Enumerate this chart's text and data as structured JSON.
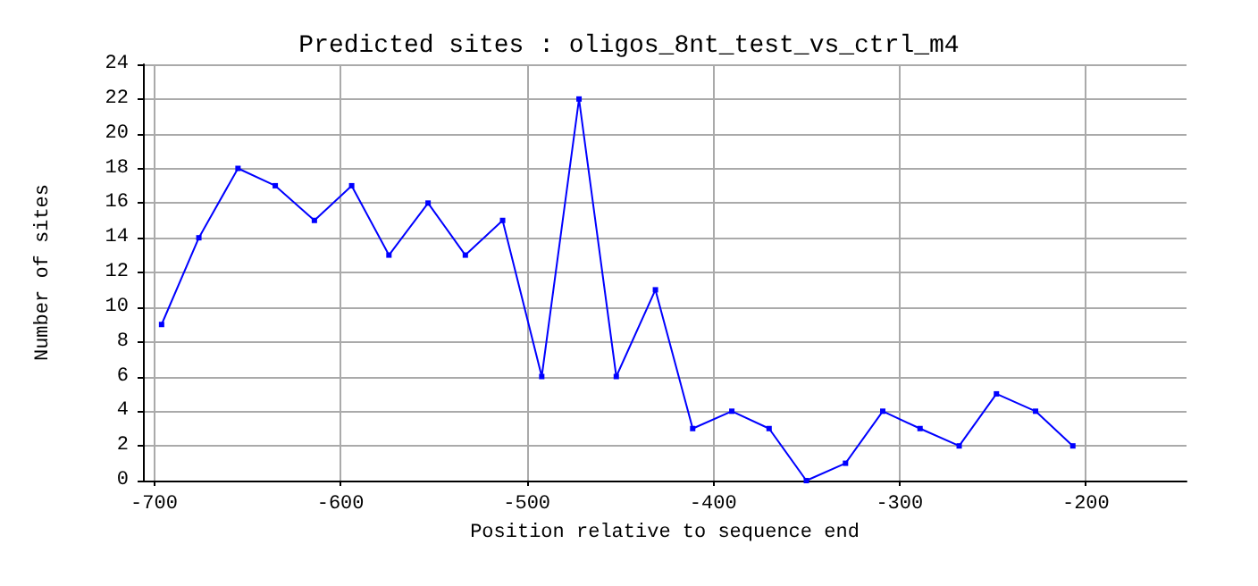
{
  "chart_data": {
    "type": "line",
    "title": "Predicted sites : oligos_8nt_test_vs_ctrl_m4",
    "xlabel": "Position relative to sequence end",
    "ylabel": "Number of sites",
    "x": [
      -696,
      -676,
      -655,
      -635,
      -614,
      -594,
      -574,
      -553,
      -533,
      -513,
      -492,
      -472,
      -452,
      -431,
      -411,
      -390,
      -370,
      -350,
      -329,
      -309,
      -289,
      -268,
      -248,
      -227,
      -207
    ],
    "series": [
      {
        "color": "#0000ff",
        "values": [
          9,
          14,
          18,
          17,
          15,
          17,
          13,
          16,
          13,
          15,
          6,
          22,
          6,
          11,
          3,
          4,
          3,
          0,
          1,
          4,
          3,
          2,
          5,
          4,
          2
        ]
      }
    ],
    "xlim": [
      -706,
      -146
    ],
    "xticks": [
      -700,
      -600,
      -500,
      -400,
      -300,
      -200
    ],
    "ylim": [
      0,
      24
    ],
    "yticks": [
      0,
      2,
      4,
      6,
      8,
      10,
      12,
      14,
      16,
      18,
      20,
      22,
      24
    ],
    "grid": true,
    "marker": "square",
    "line_style": "solid"
  }
}
